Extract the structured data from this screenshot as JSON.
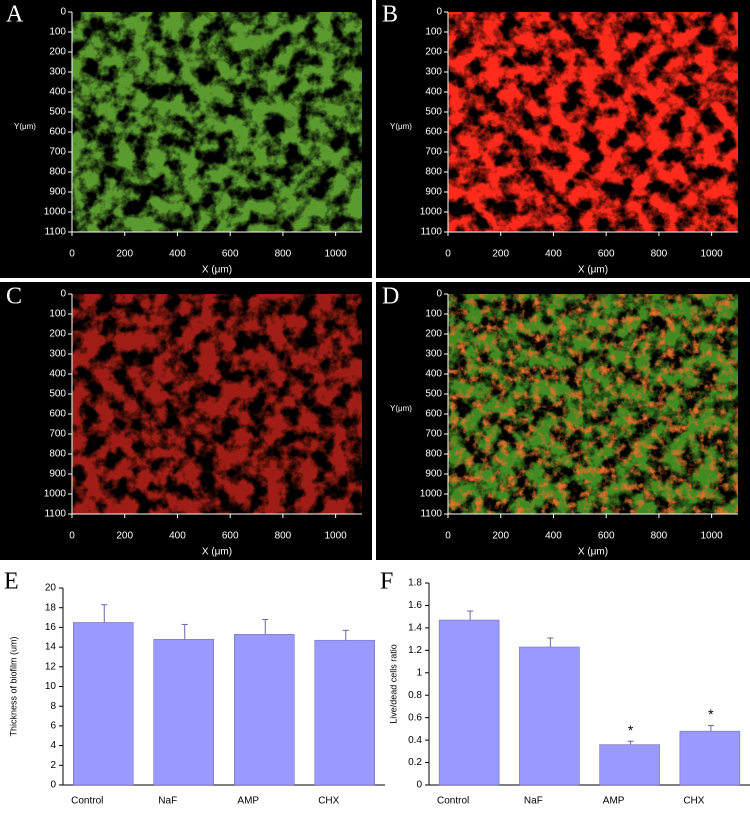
{
  "chart_data": [
    {
      "type": "image",
      "panel": "A",
      "colors": [
        "#5a9a2e"
      ],
      "xlabel": "X (μm)",
      "ylabel": "Y(μm)",
      "xlim": [
        0,
        1100
      ],
      "ylim": [
        0,
        1100
      ],
      "xticks": [
        0,
        200,
        400,
        600,
        800,
        1000
      ],
      "yticks": [
        0,
        100,
        200,
        300,
        400,
        500,
        600,
        700,
        800,
        900,
        1000,
        1100
      ]
    },
    {
      "type": "image",
      "panel": "B",
      "colors": [
        "#ff2a1a"
      ],
      "xlabel": "X (μm)",
      "ylabel": "Y(μm)",
      "xlim": [
        0,
        1100
      ],
      "ylim": [
        0,
        1100
      ],
      "xticks": [
        0,
        200,
        400,
        600,
        800,
        1000
      ],
      "yticks": [
        0,
        100,
        200,
        300,
        400,
        500,
        600,
        700,
        800,
        900,
        1000,
        1100
      ]
    },
    {
      "type": "image",
      "panel": "C",
      "colors": [
        "#a01e14"
      ],
      "xlabel": "X (μm)",
      "xlim": [
        0,
        1100
      ],
      "ylim": [
        0,
        1100
      ],
      "xticks": [
        0,
        200,
        400,
        600,
        800,
        1000
      ],
      "yticks": [
        0,
        100,
        200,
        300,
        400,
        500,
        600,
        700,
        800,
        900,
        1000,
        1100
      ]
    },
    {
      "type": "image",
      "panel": "D",
      "colors": [
        "#3f8a22",
        "#e0702a"
      ],
      "xlabel": "X (μm)",
      "ylabel": "Y(μm)",
      "xlim": [
        0,
        1100
      ],
      "ylim": [
        0,
        1100
      ],
      "xticks": [
        0,
        200,
        400,
        600,
        800,
        1000
      ],
      "yticks": [
        0,
        100,
        200,
        300,
        400,
        500,
        600,
        700,
        800,
        900,
        1000,
        1100
      ]
    },
    {
      "type": "bar",
      "panel": "E",
      "ylabel": "Thickness of biofilm (um)",
      "categories": [
        "Control",
        "NaF",
        "AMP",
        "CHX"
      ],
      "values": [
        16.5,
        14.8,
        15.3,
        14.7
      ],
      "errors": [
        1.8,
        1.5,
        1.5,
        1.0
      ],
      "color": "#9999ff",
      "ylim": [
        0,
        20
      ],
      "yticks": [
        0,
        2,
        4,
        6,
        8,
        10,
        12,
        14,
        16,
        18,
        20
      ]
    },
    {
      "type": "bar",
      "panel": "F",
      "ylabel": "Live/dead cells ratio",
      "categories": [
        "Control",
        "NaF",
        "AMP",
        "CHX"
      ],
      "values": [
        1.47,
        1.23,
        0.36,
        0.48
      ],
      "errors": [
        0.08,
        0.08,
        0.03,
        0.05
      ],
      "annotations": [
        null,
        null,
        "*",
        "*"
      ],
      "color": "#9999ff",
      "ylim": [
        0,
        1.8
      ],
      "yticks": [
        0,
        0.2,
        0.4,
        0.6,
        0.8,
        1,
        1.2,
        1.4,
        1.6,
        1.8
      ]
    }
  ]
}
